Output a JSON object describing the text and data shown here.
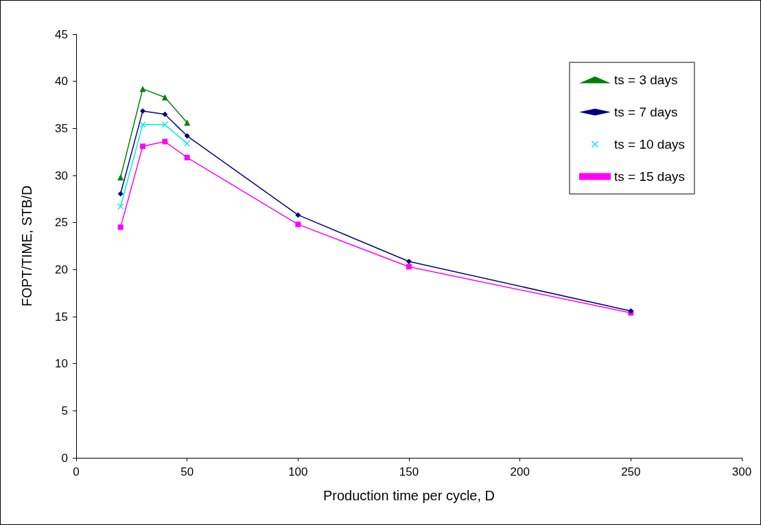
{
  "chart_data": {
    "type": "line",
    "xlabel": "Production time per cycle, D",
    "ylabel": "FOPT/TIME, STB/D",
    "xlim": [
      0,
      300
    ],
    "xticks": [
      0,
      50,
      100,
      150,
      200,
      250,
      300
    ],
    "ylim": [
      0,
      45
    ],
    "yticks": [
      0,
      5,
      10,
      15,
      20,
      25,
      30,
      35,
      40,
      45
    ],
    "grid": false,
    "legend": "top right",
    "line_style": "solid",
    "series": [
      {
        "name": "ts = 3 days",
        "color": "#008000",
        "marker": "triangle",
        "x": [
          20,
          30,
          40,
          50
        ],
        "values": [
          29.8,
          39.2,
          38.3,
          35.6
        ]
      },
      {
        "name": "ts = 7 days",
        "color": "#000080",
        "marker": "diamond",
        "x": [
          20,
          30,
          40,
          50,
          100,
          150,
          250
        ],
        "values": [
          28.05,
          36.85,
          36.5,
          34.2,
          25.8,
          20.86,
          15.6
        ]
      },
      {
        "name": "ts = 10 days",
        "color": "#00e5ee",
        "marker": "cross",
        "x": [
          20,
          30,
          40,
          50
        ],
        "values": [
          26.7,
          35.4,
          35.4,
          33.4
        ]
      },
      {
        "name": "ts = 15 days",
        "color": "#ff00ff",
        "marker": "square",
        "x": [
          20,
          30,
          40,
          50,
          100,
          150,
          250
        ],
        "values": [
          24.5,
          33.1,
          33.6,
          31.9,
          24.8,
          20.3,
          15.4
        ]
      }
    ]
  }
}
